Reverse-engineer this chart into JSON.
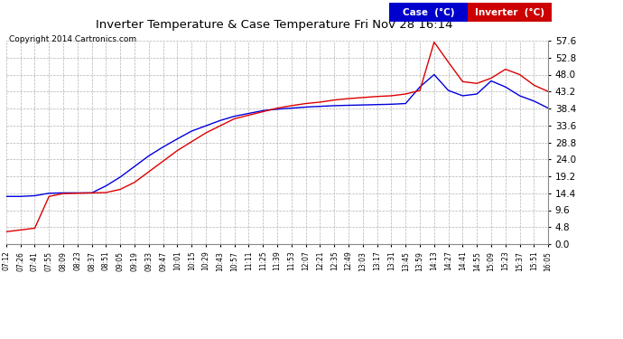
{
  "title": "Inverter Temperature & Case Temperature Fri Nov 28 16:14",
  "copyright": "Copyright 2014 Cartronics.com",
  "background_color": "#ffffff",
  "plot_bg_color": "#ffffff",
  "grid_color": "#aaaaaa",
  "ylim": [
    0.0,
    57.6
  ],
  "yticks": [
    0.0,
    4.8,
    9.6,
    14.4,
    19.2,
    24.0,
    28.8,
    33.6,
    38.4,
    43.2,
    48.0,
    52.8,
    57.6
  ],
  "case_color": "#0000dd",
  "inverter_color": "#dd0000",
  "legend_case_bg": "#0000cc",
  "legend_inverter_bg": "#cc0000",
  "xtick_labels": [
    "07:12",
    "07:26",
    "07:41",
    "07:55",
    "08:09",
    "08:23",
    "08:37",
    "08:51",
    "09:05",
    "09:19",
    "09:33",
    "09:47",
    "10:01",
    "10:15",
    "10:29",
    "10:43",
    "10:57",
    "11:11",
    "11:25",
    "11:39",
    "11:53",
    "12:07",
    "12:21",
    "12:35",
    "12:49",
    "13:03",
    "13:17",
    "13:31",
    "13:45",
    "13:59",
    "14:13",
    "14:27",
    "14:41",
    "14:55",
    "15:09",
    "15:23",
    "15:37",
    "15:51",
    "16:05"
  ],
  "case_temps": [
    13.5,
    13.5,
    13.7,
    14.4,
    14.5,
    14.5,
    14.5,
    16.5,
    19.0,
    22.0,
    25.0,
    27.5,
    29.8,
    32.0,
    33.5,
    35.0,
    36.2,
    37.0,
    37.8,
    38.2,
    38.5,
    38.8,
    39.0,
    39.2,
    39.3,
    39.4,
    39.5,
    39.6,
    39.8,
    44.5,
    48.0,
    43.5,
    42.0,
    42.5,
    46.2,
    44.5,
    42.0,
    40.5,
    38.5
  ],
  "inverter_early": [
    3.5,
    4.0,
    4.5,
    13.5,
    14.3,
    14.4,
    14.5,
    14.6,
    15.5,
    17.5,
    20.5,
    23.5,
    26.5,
    29.0,
    31.5,
    33.5,
    35.5,
    36.5,
    37.5,
    38.5,
    39.2,
    39.8,
    40.2,
    40.8,
    41.2,
    41.5,
    41.8,
    42.0,
    42.5,
    43.5,
    57.2,
    51.5,
    46.0,
    45.5,
    47.0,
    49.5,
    48.0,
    45.0,
    43.2
  ]
}
